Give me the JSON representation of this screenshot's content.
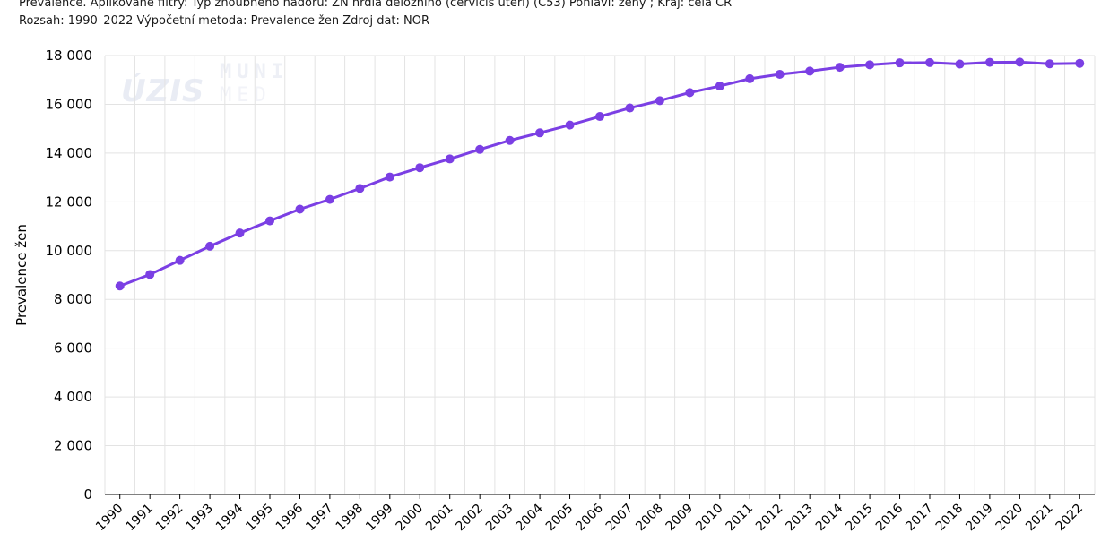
{
  "header": {
    "line1": "Prevalence. Aplikované filtry: Typ zhoubného nádoru: ZN hrdla děložního (cervicis uteri) (C53) Pohlaví: ženy ; Kraj: celá ČR",
    "line2": "Rozsah: 1990–2022 Výpočetní metoda: Prevalence žen Zdroj dat: NOR"
  },
  "watermark": {
    "uzis": "ÚZIS",
    "muni": "MUNI",
    "med": "MED"
  },
  "colors": {
    "series": "#7b3fe4",
    "grid": "#e3e3e3",
    "axis": "#000000"
  },
  "chart_data": {
    "type": "line",
    "title": "",
    "xlabel": "",
    "ylabel": "Prevalence žen",
    "ylim": [
      0,
      18000
    ],
    "yticks": [
      0,
      2000,
      4000,
      6000,
      8000,
      10000,
      12000,
      14000,
      16000,
      18000
    ],
    "ytick_labels": [
      "0",
      "2 000",
      "4 000",
      "6 000",
      "8 000",
      "10 000",
      "12 000",
      "14 000",
      "16 000",
      "18 000"
    ],
    "grid": true,
    "legend": "none",
    "categories": [
      "1990",
      "1991",
      "1992",
      "1993",
      "1994",
      "1995",
      "1996",
      "1997",
      "1998",
      "1999",
      "2000",
      "2001",
      "2002",
      "2003",
      "2004",
      "2005",
      "2006",
      "2007",
      "2008",
      "2009",
      "2010",
      "2011",
      "2012",
      "2013",
      "2014",
      "2015",
      "2016",
      "2017",
      "2018",
      "2019",
      "2020",
      "2021",
      "2022"
    ],
    "series": [
      {
        "values": [
          8550,
          9020,
          9600,
          10180,
          10720,
          11220,
          11700,
          12100,
          12550,
          13020,
          13400,
          13760,
          14150,
          14520,
          14830,
          15150,
          15500,
          15850,
          16150,
          16480,
          16750,
          17050,
          17230,
          17360,
          17520,
          17620,
          17700,
          17710,
          17650,
          17720,
          17730,
          17660,
          17680
        ]
      }
    ]
  }
}
